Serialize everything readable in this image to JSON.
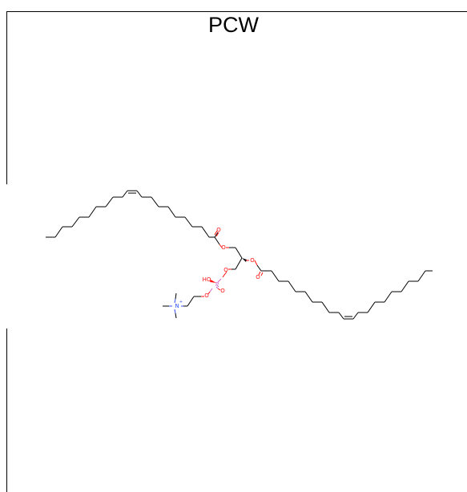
{
  "title": "PCW",
  "atoms": {
    "o_ester1_single": "O",
    "o_ester1_carbonyl": "O",
    "o_ester2_single": "O",
    "o_ester2_carbonyl": "O",
    "o_phosphate_glycerol": "O",
    "o_phosphate_choline": "O",
    "o_phosphate_double": "O",
    "oh_phosphate": "HO",
    "phosphorus": "P",
    "nitrogen": "N",
    "nitrogen_charge": "+"
  },
  "colors": {
    "oxygen": "#ff0d0d",
    "phosphorus": "#cc66cc",
    "nitrogen": "#3050f8",
    "carbon_bond": "#000000",
    "frame": "#000000"
  }
}
